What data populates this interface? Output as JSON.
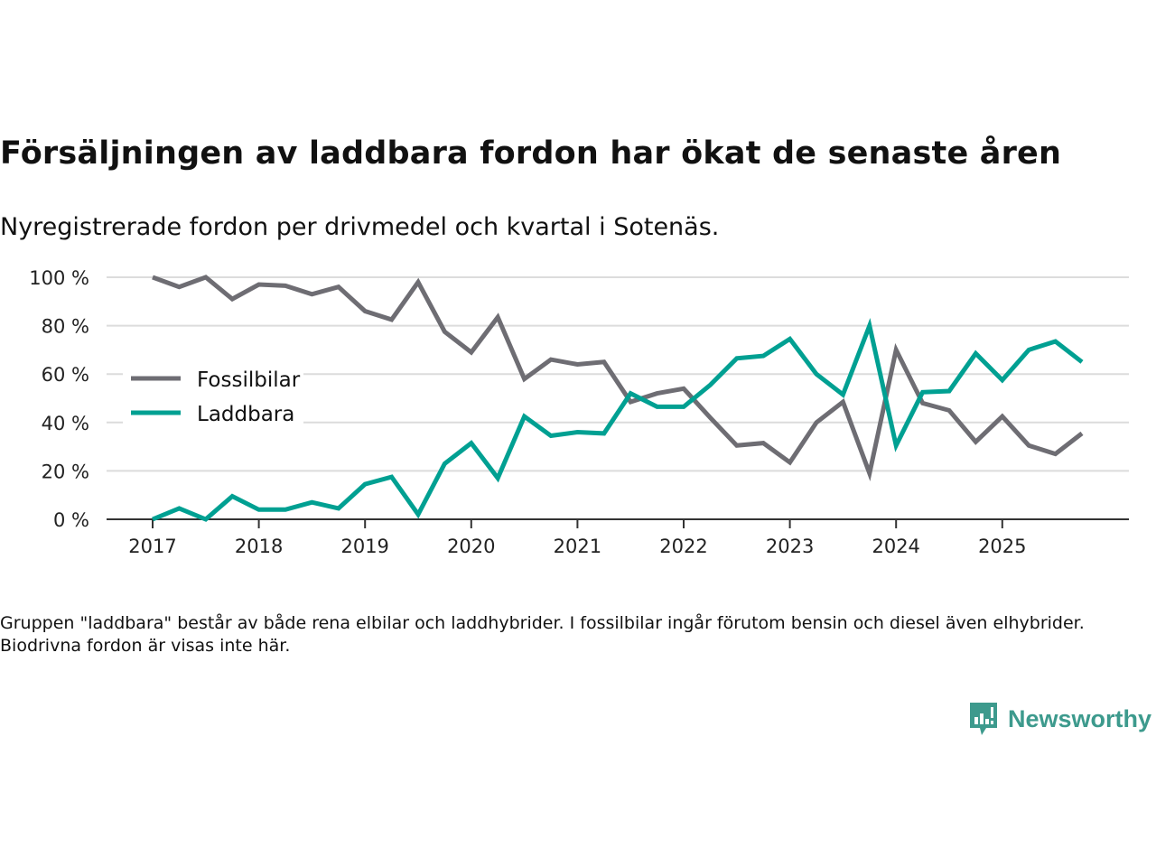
{
  "title": "Försäljningen av laddbara fordon har ökat de senaste åren",
  "subtitle": "Nyregistrerade fordon per drivmedel och kvartal i Sotenäs.",
  "footnote": "Gruppen \"laddbara\" består av både rena elbilar och laddhybrider. I fossilbilar ingår förutom bensin och diesel även elhybrider. Biodrivna fordon är visas inte här.",
  "brand": {
    "name": "Newsworthy",
    "color": "#3d9a8d"
  },
  "chart_data": {
    "type": "line",
    "title": "Försäljningen av laddbara fordon har ökat de senaste åren",
    "subtitle": "Nyregistrerade fordon per drivmedel och kvartal i Sotenäs.",
    "xlabel": "",
    "ylabel": "",
    "x": [
      "2017Q1",
      "2017Q2",
      "2017Q3",
      "2017Q4",
      "2018Q1",
      "2018Q2",
      "2018Q3",
      "2018Q4",
      "2019Q1",
      "2019Q2",
      "2019Q3",
      "2019Q4",
      "2020Q1",
      "2020Q2",
      "2020Q3",
      "2020Q4",
      "2021Q1",
      "2021Q2",
      "2021Q3",
      "2021Q4",
      "2022Q1",
      "2022Q2",
      "2022Q3",
      "2022Q4",
      "2023Q1",
      "2023Q2",
      "2023Q3",
      "2023Q4",
      "2024Q1",
      "2024Q2",
      "2024Q3",
      "2024Q4",
      "2025Q1",
      "2025Q2",
      "2025Q3",
      "2025Q4"
    ],
    "x_tick_labels": [
      "2017",
      "2018",
      "2019",
      "2020",
      "2021",
      "2022",
      "2023",
      "2024",
      "2025"
    ],
    "y_tick_labels": [
      "0 %",
      "20 %",
      "40 %",
      "60 %",
      "80 %",
      "100 %"
    ],
    "y_ticks": [
      0,
      20,
      40,
      60,
      80,
      100
    ],
    "ylim": [
      0,
      100
    ],
    "grid": true,
    "legend_position": "left-middle",
    "series": [
      {
        "name": "Fossilbilar",
        "color": "#6e6d73",
        "values": [
          100,
          96,
          100,
          91,
          97,
          96.5,
          93,
          96,
          86,
          82.5,
          98,
          77.5,
          69,
          83.5,
          58,
          66,
          64,
          65,
          48.5,
          52,
          54,
          42,
          30.5,
          31.5,
          23.5,
          40,
          48.5,
          19,
          70,
          48,
          45,
          32,
          42.5,
          30.5,
          27,
          35.5
        ]
      },
      {
        "name": "Laddbara",
        "color": "#00a092",
        "values": [
          0,
          4.5,
          0,
          9.5,
          4,
          4,
          7,
          4.5,
          14.5,
          17.5,
          2,
          23,
          31.5,
          17,
          42.5,
          34.5,
          36,
          35.5,
          52,
          46.5,
          46.5,
          55.5,
          66.5,
          67.5,
          74.5,
          60,
          51.5,
          80,
          30.5,
          52.5,
          53,
          68.5,
          57.5,
          70,
          73.5,
          65
        ]
      }
    ]
  }
}
